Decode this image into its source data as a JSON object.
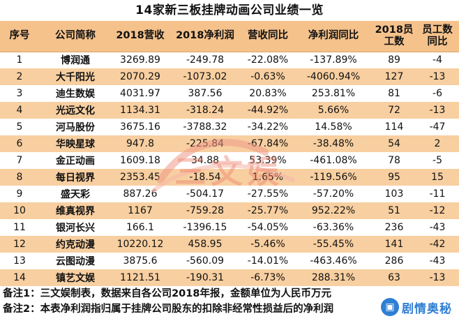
{
  "title": "14家新三板挂牌动画公司业绩一览",
  "headers": [
    "序号",
    "公司简称",
    "2018营收",
    "2018净利润",
    "营收同比",
    "净利润同比",
    "2018员\n工数",
    "员工数\n同比"
  ],
  "rows": [
    [
      "1",
      "博润通",
      "3269.89",
      "-249.78",
      "-22.08%",
      "-137.89%",
      "89",
      "-4"
    ],
    [
      "2",
      "大千阳光",
      "2070.29",
      "-1073.02",
      "-0.63%",
      "-4060.94%",
      "127",
      "-13"
    ],
    [
      "3",
      "迪生数娱",
      "4031.97",
      "387.56",
      "20.83%",
      "253.81%",
      "81",
      "-6"
    ],
    [
      "4",
      "光远文化",
      "1134.31",
      "-318.24",
      "-44.92%",
      "5.66%",
      "72",
      "-13"
    ],
    [
      "5",
      "河马股份",
      "3675.16",
      "-3788.32",
      "-34.22%",
      "14.58%",
      "114",
      "-47"
    ],
    [
      "6",
      "华映星球",
      "947.8",
      "-225.84",
      "-67.84%",
      "-38.48%",
      "54",
      "2"
    ],
    [
      "7",
      "金正动画",
      "1609.18",
      "34.88",
      "53.39%",
      "-461.08%",
      "78",
      "-5"
    ],
    [
      "8",
      "每日视界",
      "2353.45",
      "-18.54",
      "1.65%",
      "-119.56%",
      "95",
      "15"
    ],
    [
      "9",
      "盛天彩",
      "887.26",
      "-504.17",
      "-27.55%",
      "-57.20%",
      "103",
      "-11"
    ],
    [
      "10",
      "维真视界",
      "1167",
      "-759.28",
      "-25.77%",
      "952.22%",
      "51",
      "-12"
    ],
    [
      "11",
      "银河长兴",
      "166.1",
      "-1396.15",
      "-54.05%",
      "-63.36%",
      "236",
      "-43"
    ],
    [
      "12",
      "约克动漫",
      "10220.12",
      "458.95",
      "-5.46%",
      "-55.45%",
      "141",
      "-42"
    ],
    [
      "13",
      "云图动漫",
      "3875.6",
      "-560.09",
      "-14.01%",
      "-463.46%",
      "286",
      "-43"
    ],
    [
      "14",
      "镇艺文娱",
      "1121.51",
      "-190.31",
      "-6.73%",
      "288.31%",
      "63",
      "-13"
    ]
  ],
  "notes": [
    "备注1：三文娱制表，数据来自各公司2018年报，金额单位为人民币万元",
    "备注2：本表净利润指归属于挂牌公司股东的扣除非经常性损益后的净利润"
  ],
  "watermark_text": "三文娱",
  "logo": {
    "icon": "tv-icon",
    "text": "剧情奥秘"
  },
  "colors": {
    "header": "#f5c28c",
    "stripe": "#f8cfa0",
    "logo": "#2f7fd4"
  }
}
